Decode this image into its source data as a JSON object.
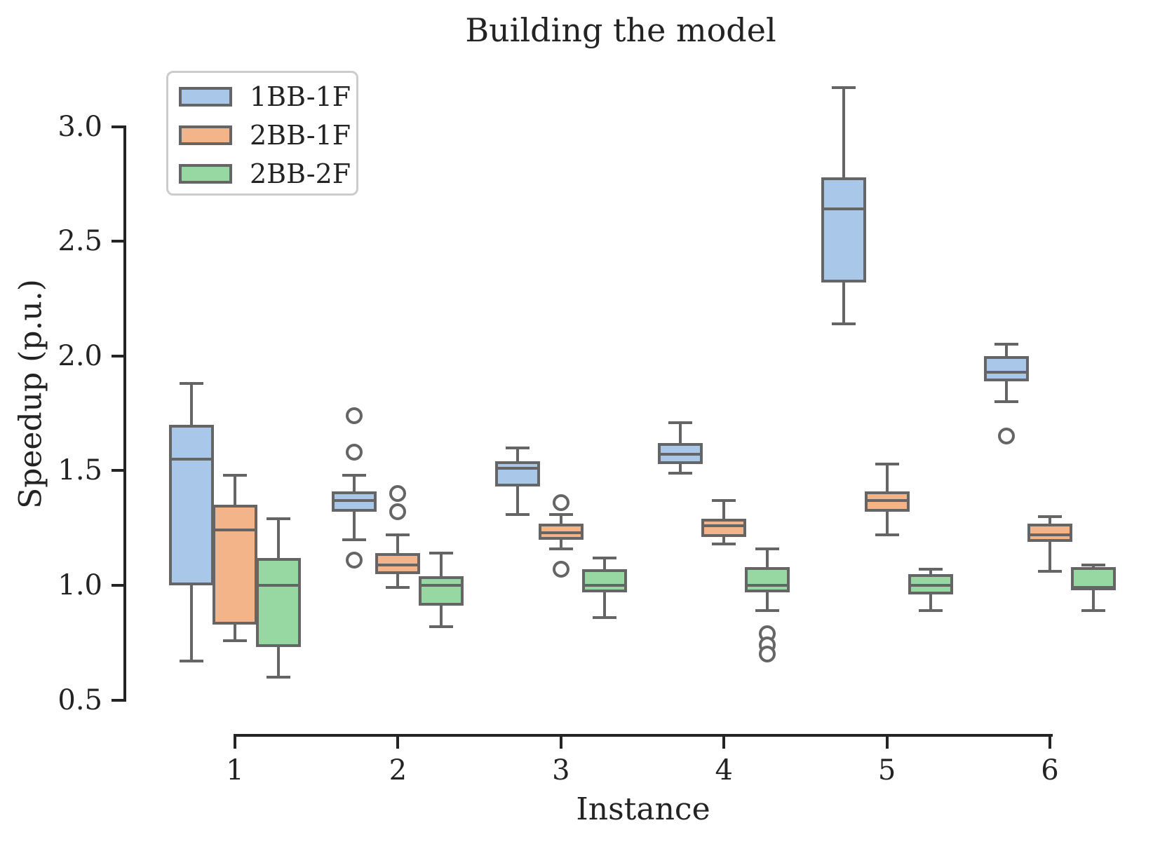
{
  "chart_data": {
    "type": "box",
    "title": "Building the model",
    "xlabel": "Instance",
    "ylabel": "Speedup (p.u.)",
    "ylim": [
      0.5,
      3.3
    ],
    "yticks": [
      0.5,
      1.0,
      1.5,
      2.0,
      2.5,
      3.0
    ],
    "ytick_labels": [
      "0.5",
      "1.0",
      "1.5",
      "2.0",
      "2.5",
      "3.0"
    ],
    "categories": [
      "1",
      "2",
      "3",
      "4",
      "5",
      "6"
    ],
    "grid": false,
    "legend_position": "upper left",
    "colors": {
      "box_edge": "#656565",
      "axis": "#242424",
      "text": "#232323",
      "legend_border": "#cccccc",
      "background": "#ffffff"
    },
    "series": [
      {
        "name": "1BB-1F",
        "fill": "#a9c7e9",
        "boxes": [
          {
            "whislo": 0.67,
            "q1": 1.0,
            "med": 1.55,
            "q3": 1.7,
            "whishi": 1.88,
            "fliers": []
          },
          {
            "whislo": 1.2,
            "q1": 1.32,
            "med": 1.37,
            "q3": 1.41,
            "whishi": 1.48,
            "fliers": [
              1.74,
              1.58,
              1.11
            ]
          },
          {
            "whislo": 1.31,
            "q1": 1.43,
            "med": 1.51,
            "q3": 1.54,
            "whishi": 1.6,
            "fliers": []
          },
          {
            "whislo": 1.49,
            "q1": 1.53,
            "med": 1.57,
            "q3": 1.62,
            "whishi": 1.71,
            "fliers": []
          },
          {
            "whislo": 2.14,
            "q1": 2.32,
            "med": 2.64,
            "q3": 2.78,
            "whishi": 3.17,
            "fliers": []
          },
          {
            "whislo": 1.8,
            "q1": 1.89,
            "med": 1.93,
            "q3": 2.0,
            "whishi": 2.05,
            "fliers": [
              1.65
            ]
          }
        ]
      },
      {
        "name": "2BB-1F",
        "fill": "#f2b488",
        "boxes": [
          {
            "whislo": 0.76,
            "q1": 0.83,
            "med": 1.24,
            "q3": 1.35,
            "whishi": 1.48,
            "fliers": []
          },
          {
            "whislo": 0.99,
            "q1": 1.05,
            "med": 1.09,
            "q3": 1.14,
            "whishi": 1.22,
            "fliers": [
              1.4,
              1.32
            ]
          },
          {
            "whislo": 1.16,
            "q1": 1.2,
            "med": 1.23,
            "q3": 1.27,
            "whishi": 1.31,
            "fliers": [
              1.36,
              1.07
            ]
          },
          {
            "whislo": 1.18,
            "q1": 1.21,
            "med": 1.26,
            "q3": 1.29,
            "whishi": 1.37,
            "fliers": []
          },
          {
            "whislo": 1.22,
            "q1": 1.32,
            "med": 1.37,
            "q3": 1.41,
            "whishi": 1.53,
            "fliers": []
          },
          {
            "whislo": 1.06,
            "q1": 1.19,
            "med": 1.22,
            "q3": 1.27,
            "whishi": 1.3,
            "fliers": []
          }
        ]
      },
      {
        "name": "2BB-2F",
        "fill": "#97d7a1",
        "boxes": [
          {
            "whislo": 0.6,
            "q1": 0.73,
            "med": 1.0,
            "q3": 1.12,
            "whishi": 1.29,
            "fliers": []
          },
          {
            "whislo": 0.82,
            "q1": 0.91,
            "med": 1.0,
            "q3": 1.04,
            "whishi": 1.14,
            "fliers": []
          },
          {
            "whislo": 0.86,
            "q1": 0.97,
            "med": 1.0,
            "q3": 1.07,
            "whishi": 1.12,
            "fliers": []
          },
          {
            "whislo": 0.89,
            "q1": 0.97,
            "med": 1.0,
            "q3": 1.08,
            "whishi": 1.16,
            "fliers": [
              0.79,
              0.74,
              0.7
            ]
          },
          {
            "whislo": 0.89,
            "q1": 0.96,
            "med": 1.0,
            "q3": 1.05,
            "whishi": 1.07,
            "fliers": []
          },
          {
            "whislo": 0.89,
            "q1": 0.98,
            "med": 0.99,
            "q3": 1.08,
            "whishi": 1.09,
            "fliers": []
          }
        ]
      }
    ]
  }
}
